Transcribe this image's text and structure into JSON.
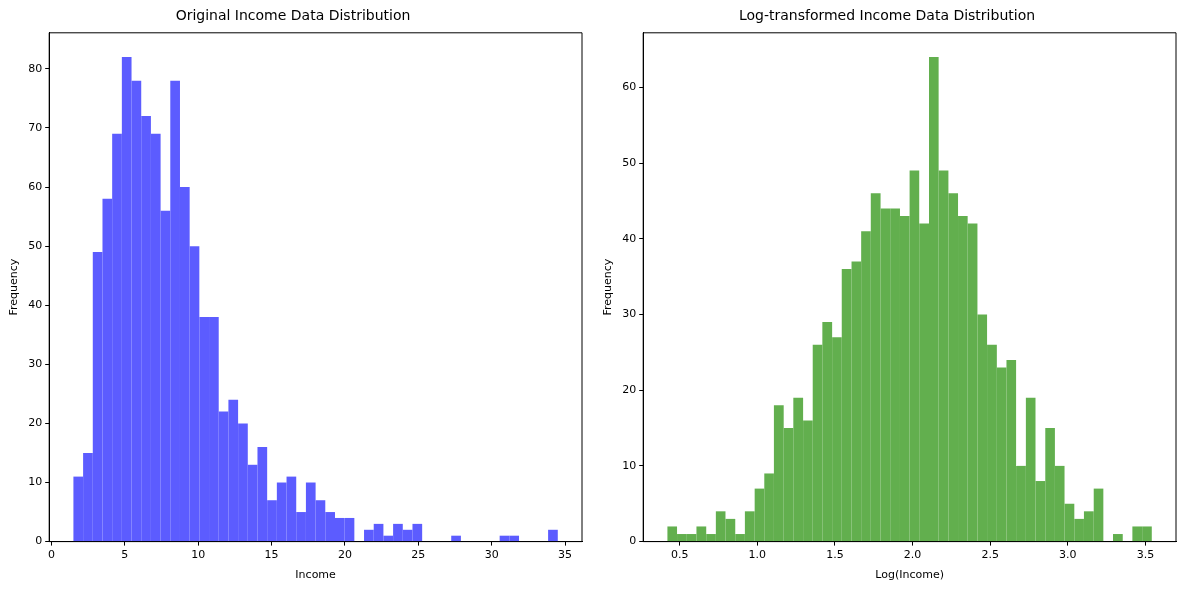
{
  "chart_data": [
    {
      "type": "histogram",
      "title": "Original Income Data Distribution",
      "xlabel": "Income",
      "ylabel": "Frequency",
      "color": "#5c5cff",
      "bins": [
        1.5,
        2.16,
        2.82,
        3.48,
        4.14,
        4.8,
        5.46,
        6.12,
        6.78,
        7.44,
        8.1,
        8.76,
        9.42,
        10.08,
        10.74,
        11.4,
        12.06,
        12.72,
        13.38,
        14.04,
        14.7,
        15.36,
        16.02,
        16.68,
        17.34,
        18.0,
        18.66,
        19.32,
        19.98,
        20.64,
        21.3,
        21.96,
        22.62,
        23.28,
        23.94,
        24.6,
        25.26,
        25.92,
        26.58,
        27.24,
        27.9,
        28.56,
        29.22,
        29.88,
        30.54,
        31.2,
        31.86,
        32.52,
        33.18,
        33.84,
        34.5
      ],
      "values": [
        11,
        15,
        49,
        58,
        69,
        82,
        78,
        72,
        69,
        56,
        78,
        60,
        50,
        38,
        38,
        22,
        24,
        20,
        13,
        16,
        7,
        10,
        11,
        5,
        10,
        7,
        5,
        4,
        4,
        0,
        2,
        3,
        1,
        3,
        2,
        3,
        0,
        0,
        0,
        1,
        0,
        0,
        0,
        0,
        1,
        1,
        0,
        0,
        0,
        2
      ],
      "xlim": [
        -0.15,
        36.15
      ],
      "xticks": [
        0,
        5,
        10,
        15,
        20,
        25,
        30,
        35
      ],
      "ylim": [
        0,
        86.1
      ],
      "yticks": [
        0,
        10,
        20,
        30,
        40,
        50,
        60,
        70,
        80
      ],
      "grid": false,
      "legend": false
    },
    {
      "type": "histogram",
      "title": "Log-transformed Income Data Distribution",
      "xlabel": "Log(Income)",
      "ylabel": "Frequency",
      "color": "#62af4e",
      "bins": [
        0.421,
        0.483,
        0.546,
        0.608,
        0.671,
        0.733,
        0.795,
        0.858,
        0.92,
        0.983,
        1.045,
        1.107,
        1.17,
        1.232,
        1.295,
        1.357,
        1.419,
        1.482,
        1.544,
        1.607,
        1.669,
        1.731,
        1.794,
        1.856,
        1.919,
        1.981,
        2.043,
        2.106,
        2.168,
        2.231,
        2.293,
        2.355,
        2.418,
        2.48,
        2.543,
        2.605,
        2.667,
        2.73,
        2.792,
        2.855,
        2.917,
        2.979,
        3.042,
        3.104,
        3.167,
        3.229,
        3.291,
        3.354,
        3.416,
        3.479,
        3.541
      ],
      "values": [
        2,
        1,
        1,
        2,
        1,
        4,
        3,
        1,
        4,
        7,
        9,
        18,
        15,
        19,
        16,
        26,
        29,
        27,
        36,
        37,
        41,
        46,
        44,
        44,
        43,
        49,
        42,
        64,
        49,
        46,
        43,
        42,
        30,
        26,
        23,
        24,
        10,
        19,
        8,
        15,
        10,
        5,
        3,
        4,
        7,
        0,
        1,
        0,
        2,
        2
      ],
      "xlim": [
        0.265,
        3.697
      ],
      "xticks": [
        {
          "value": 0.5,
          "label": "0.5"
        },
        {
          "value": 1,
          "label": "1.0"
        },
        {
          "value": 1.5,
          "label": "1.5"
        },
        {
          "value": 2,
          "label": "2.0"
        },
        {
          "value": 2.5,
          "label": "2.5"
        },
        {
          "value": 3,
          "label": "3.0"
        },
        {
          "value": 3.5,
          "label": "3.5"
        }
      ],
      "ylim": [
        0,
        67.2
      ],
      "yticks": [
        0,
        10,
        20,
        30,
        40,
        50,
        60
      ],
      "grid": false,
      "legend": false
    }
  ]
}
